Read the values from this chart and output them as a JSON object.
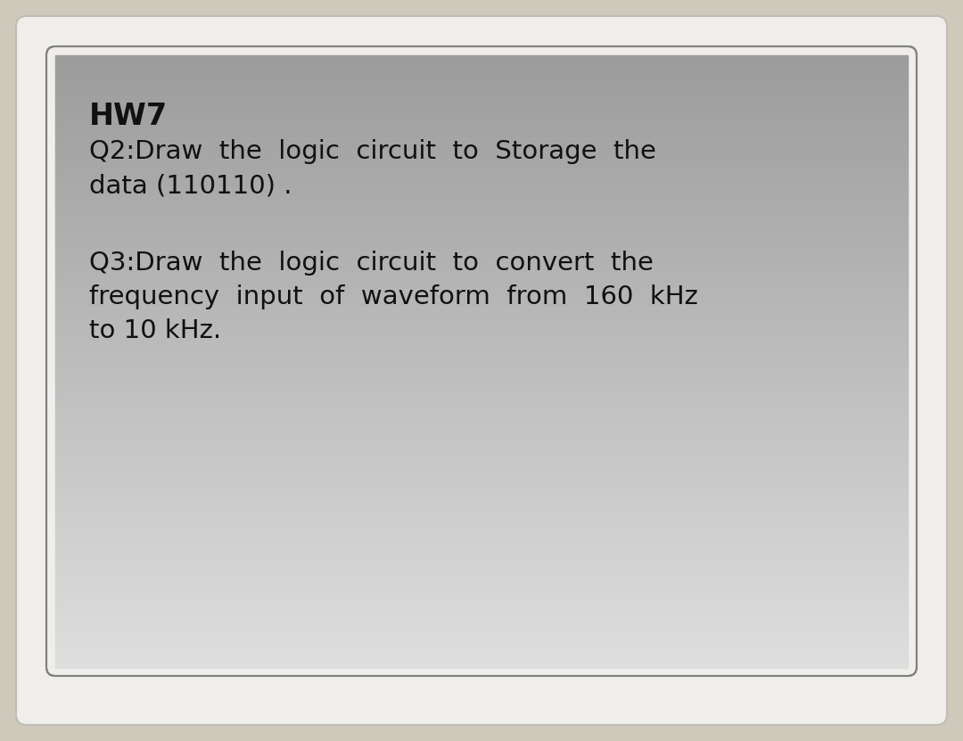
{
  "title": "HW7",
  "line1": "Q2:Draw  the  logic  circuit  to  Storage  the",
  "line2": "data (110110) .",
  "line4": "Q3:Draw  the  logic  circuit  to  convert  the",
  "line5": "frequency  input  of  waveform  from  160  kHz",
  "line6": "to 10 kHz.",
  "outer_bg": "#cfc9bb",
  "card_bg": "#f0eeea",
  "text_color": "#111111",
  "title_fontsize": 24,
  "body_fontsize": 21,
  "font_family": "DejaVu Sans"
}
